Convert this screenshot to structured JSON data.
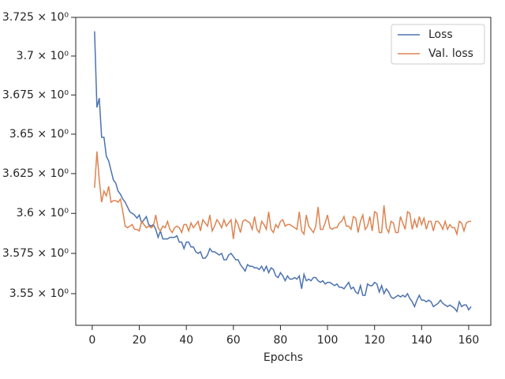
{
  "chart_data": {
    "type": "line",
    "xlabel": "Epochs",
    "yscale": "log",
    "legend": "upper right",
    "x": [
      1,
      2,
      3,
      4,
      5,
      6,
      7,
      8,
      9,
      10,
      11,
      12,
      13,
      14,
      15,
      16,
      17,
      18,
      19,
      20,
      21,
      22,
      23,
      24,
      25,
      26,
      27,
      28,
      29,
      30,
      31,
      32,
      33,
      34,
      35,
      36,
      37,
      38,
      39,
      40,
      41,
      42,
      43,
      44,
      45,
      46,
      47,
      48,
      49,
      50,
      51,
      52,
      53,
      54,
      55,
      56,
      57,
      58,
      59,
      60,
      61,
      62,
      63,
      64,
      65,
      66,
      67,
      68,
      69,
      70,
      71,
      72,
      73,
      74,
      75,
      76,
      77,
      78,
      79,
      80,
      81,
      82,
      83,
      84,
      85,
      86,
      87,
      88,
      89,
      90,
      91,
      92,
      93,
      94,
      95,
      96,
      97,
      98,
      99,
      100,
      101,
      102,
      103,
      104,
      105,
      106,
      107,
      108,
      109,
      110,
      111,
      112,
      113,
      114,
      115,
      116,
      117,
      118,
      119,
      120,
      121,
      122,
      123,
      124,
      125,
      126,
      127,
      128,
      129,
      130,
      131,
      132,
      133,
      134,
      135,
      136,
      137,
      138,
      139,
      140,
      141,
      142,
      143,
      144,
      145,
      146,
      147,
      148,
      149,
      150,
      151,
      152,
      153,
      154,
      155,
      156,
      157,
      158,
      159,
      160,
      161
    ],
    "series": [
      {
        "name": "Loss",
        "color": "#4c72b0",
        "values": [
          3.716,
          3.667,
          3.673,
          3.648,
          3.648,
          3.636,
          3.633,
          3.627,
          3.621,
          3.619,
          3.614,
          3.612,
          3.609,
          3.607,
          3.604,
          3.601,
          3.6,
          3.599,
          3.597,
          3.599,
          3.594,
          3.596,
          3.598,
          3.593,
          3.592,
          3.593,
          3.59,
          3.585,
          3.589,
          3.584,
          3.584,
          3.584,
          3.585,
          3.585,
          3.585,
          3.586,
          3.582,
          3.582,
          3.578,
          3.582,
          3.582,
          3.579,
          3.579,
          3.576,
          3.575,
          3.576,
          3.572,
          3.572,
          3.574,
          3.578,
          3.576,
          3.576,
          3.575,
          3.574,
          3.575,
          3.571,
          3.571,
          3.574,
          3.575,
          3.573,
          3.571,
          3.571,
          3.568,
          3.566,
          3.564,
          3.568,
          3.567,
          3.567,
          3.566,
          3.566,
          3.565,
          3.567,
          3.564,
          3.567,
          3.563,
          3.566,
          3.565,
          3.561,
          3.56,
          3.563,
          3.561,
          3.558,
          3.561,
          3.559,
          3.559,
          3.56,
          3.559,
          3.561,
          3.553,
          3.562,
          3.558,
          3.559,
          3.558,
          3.56,
          3.56,
          3.558,
          3.557,
          3.558,
          3.556,
          3.557,
          3.557,
          3.556,
          3.555,
          3.556,
          3.554,
          3.554,
          3.553,
          3.555,
          3.557,
          3.553,
          3.554,
          3.551,
          3.55,
          3.555,
          3.549,
          3.549,
          3.556,
          3.555,
          3.555,
          3.557,
          3.556,
          3.551,
          3.555,
          3.55,
          3.553,
          3.551,
          3.548,
          3.547,
          3.548,
          3.549,
          3.548,
          3.549,
          3.548,
          3.55,
          3.547,
          3.545,
          3.542,
          3.546,
          3.549,
          3.546,
          3.546,
          3.545,
          3.546,
          3.545,
          3.542,
          3.543,
          3.544,
          3.546,
          3.544,
          3.543,
          3.542,
          3.543,
          3.542,
          3.541,
          3.539,
          3.545,
          3.542,
          3.543,
          3.543,
          3.54,
          3.542
        ]
      },
      {
        "name": "Val. loss",
        "color": "#dd8452",
        "values": [
          3.616,
          3.639,
          3.621,
          3.607,
          3.614,
          3.611,
          3.617,
          3.607,
          3.608,
          3.608,
          3.607,
          3.609,
          3.601,
          3.592,
          3.591,
          3.592,
          3.593,
          3.59,
          3.59,
          3.589,
          3.595,
          3.593,
          3.591,
          3.592,
          3.591,
          3.592,
          3.599,
          3.591,
          3.589,
          3.592,
          3.591,
          3.595,
          3.59,
          3.588,
          3.591,
          3.592,
          3.591,
          3.588,
          3.593,
          3.593,
          3.589,
          3.594,
          3.591,
          3.593,
          3.595,
          3.589,
          3.596,
          3.594,
          3.592,
          3.599,
          3.589,
          3.592,
          3.596,
          3.594,
          3.591,
          3.596,
          3.592,
          3.594,
          3.596,
          3.584,
          3.596,
          3.593,
          3.588,
          3.595,
          3.596,
          3.595,
          3.594,
          3.59,
          3.598,
          3.59,
          3.588,
          3.595,
          3.593,
          3.59,
          3.601,
          3.59,
          3.588,
          3.593,
          3.591,
          3.595,
          3.596,
          3.592,
          3.593,
          3.593,
          3.592,
          3.591,
          3.59,
          3.601,
          3.589,
          3.587,
          3.599,
          3.592,
          3.59,
          3.588,
          3.592,
          3.604,
          3.59,
          3.59,
          3.594,
          3.599,
          3.591,
          3.59,
          3.591,
          3.591,
          3.594,
          3.595,
          3.598,
          3.592,
          3.592,
          3.59,
          3.598,
          3.597,
          3.588,
          3.595,
          3.599,
          3.59,
          3.592,
          3.598,
          3.589,
          3.601,
          3.6,
          3.588,
          3.588,
          3.605,
          3.591,
          3.588,
          3.595,
          3.594,
          3.588,
          3.588,
          3.598,
          3.594,
          3.59,
          3.601,
          3.6,
          3.59,
          3.596,
          3.591,
          3.598,
          3.593,
          3.597,
          3.59,
          3.595,
          3.595,
          3.589,
          3.595,
          3.595,
          3.593,
          3.59,
          3.595,
          3.59,
          3.593,
          3.591,
          3.591,
          3.587,
          3.595,
          3.594,
          3.589,
          3.594,
          3.595,
          3.595
        ]
      }
    ],
    "xlim": [
      -7,
      169.4
    ],
    "xticks": [
      0,
      20,
      40,
      60,
      80,
      100,
      120,
      140,
      160
    ],
    "ylim": [
      3.5305,
      3.725
    ],
    "yticks": [
      {
        "value": 3.55,
        "label": "3.55 × 10⁰"
      },
      {
        "value": 3.575,
        "label": "3.575 × 10⁰"
      },
      {
        "value": 3.6,
        "label": "3.6 × 10⁰"
      },
      {
        "value": 3.625,
        "label": "3.625 × 10⁰"
      },
      {
        "value": 3.65,
        "label": "3.65 × 10⁰"
      },
      {
        "value": 3.675,
        "label": "3.675 × 10⁰"
      },
      {
        "value": 3.7,
        "label": "3.7 × 10⁰"
      },
      {
        "value": 3.725,
        "label": "3.725 × 10⁰"
      }
    ]
  }
}
